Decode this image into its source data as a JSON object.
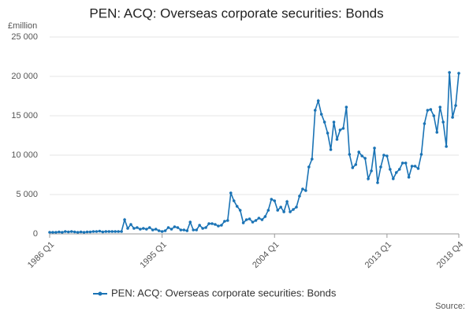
{
  "chart_data": {
    "type": "line",
    "title": "PEN: ACQ: Overseas corporate securities: Bonds",
    "y_unit_label": "£million",
    "source": "Source:",
    "categories": [
      "1986 Q1",
      null,
      null,
      null,
      null,
      null,
      null,
      null,
      null,
      null,
      null,
      null,
      null,
      null,
      null,
      null,
      null,
      null,
      null,
      null,
      null,
      null,
      null,
      null,
      null,
      null,
      null,
      null,
      null,
      null,
      null,
      null,
      null,
      null,
      null,
      null,
      "1995 Q1",
      null,
      null,
      null,
      null,
      null,
      null,
      null,
      null,
      null,
      null,
      null,
      null,
      null,
      null,
      null,
      null,
      null,
      null,
      null,
      null,
      null,
      null,
      null,
      null,
      null,
      null,
      null,
      null,
      null,
      null,
      null,
      null,
      null,
      null,
      null,
      "2004 Q1",
      null,
      null,
      null,
      null,
      null,
      null,
      null,
      null,
      null,
      null,
      null,
      null,
      null,
      null,
      null,
      null,
      null,
      null,
      null,
      null,
      null,
      null,
      null,
      null,
      null,
      null,
      null,
      null,
      null,
      null,
      null,
      null,
      null,
      null,
      null,
      "2013 Q1",
      null,
      null,
      null,
      null,
      null,
      null,
      null,
      null,
      null,
      null,
      null,
      null,
      null,
      null,
      null,
      null,
      null,
      null,
      null,
      null,
      null,
      null,
      "2018 Q4"
    ],
    "series": [
      {
        "name": "PEN: ACQ: Overseas corporate securities: Bonds",
        "color": "#1a73b5",
        "values": [
          200,
          200,
          200,
          250,
          200,
          300,
          250,
          300,
          250,
          200,
          250,
          200,
          250,
          250,
          300,
          300,
          350,
          250,
          300,
          300,
          300,
          300,
          300,
          300,
          1800,
          700,
          1200,
          700,
          800,
          600,
          700,
          600,
          800,
          500,
          600,
          400,
          300,
          400,
          800,
          600,
          900,
          800,
          500,
          500,
          400,
          1500,
          500,
          500,
          1100,
          700,
          800,
          1300,
          1300,
          1200,
          1000,
          1100,
          1600,
          1700,
          5200,
          4200,
          3500,
          3000,
          1400,
          1800,
          1900,
          1500,
          1700,
          2000,
          1800,
          2200,
          3000,
          4400,
          4200,
          3000,
          3400,
          2800,
          4100,
          2800,
          3100,
          3400,
          4800,
          5700,
          5500,
          8500,
          9500,
          15700,
          16900,
          15200,
          14200,
          12800,
          10700,
          14200,
          12000,
          13200,
          13400,
          16100,
          10100,
          8400,
          8800,
          10400,
          9900,
          9600,
          7000,
          8000,
          10900,
          6500,
          8500,
          10000,
          9900,
          8200,
          7000,
          7800,
          8200,
          9000,
          9000,
          7200,
          8600,
          8600,
          8300,
          10100,
          14000,
          15700,
          15800,
          15000,
          12900,
          16100,
          14200,
          11100,
          20500,
          14800,
          16300,
          20400
        ]
      }
    ],
    "ylim": [
      0,
      25000
    ],
    "yticks": [
      0,
      {
        "value": 5000,
        "label": "5 000"
      },
      {
        "value": 10000,
        "label": "10 000"
      },
      {
        "value": 15000,
        "label": "15 000"
      },
      {
        "value": 20000,
        "label": "20 000"
      },
      {
        "value": 25000,
        "label": "25 000"
      }
    ],
    "grid": true,
    "legend": "bottom"
  }
}
